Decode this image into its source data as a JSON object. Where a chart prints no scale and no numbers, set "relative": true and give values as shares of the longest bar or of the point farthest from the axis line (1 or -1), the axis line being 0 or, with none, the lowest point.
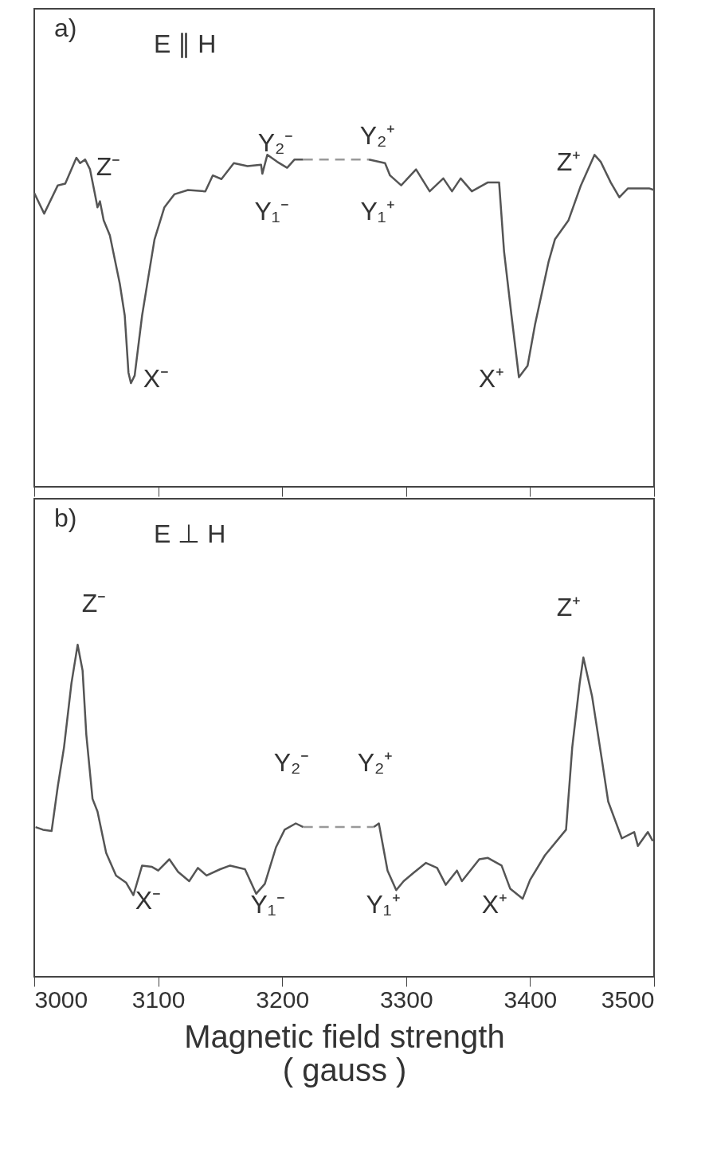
{
  "chart_data": [
    {
      "type": "line",
      "relative": true,
      "xlim": [
        3000,
        3500
      ],
      "xticks": [
        3000,
        3100,
        3200,
        3300,
        3400,
        3500
      ],
      "tick_labels": false,
      "annotations": [
        "a)",
        "E ∥ H",
        "Z⁻",
        "X⁻",
        "Y₂⁻",
        "Y₁⁻",
        "Y₂⁺",
        "Y₁⁺",
        "X⁺",
        "Z⁺"
      ],
      "series": [
        {
          "color": "#555555",
          "line_style": "solid",
          "x": [
            3000,
            3008,
            3019,
            3025,
            3034,
            3037,
            3041,
            3045,
            3049,
            3051,
            3053,
            3056,
            3061,
            3069,
            3073,
            3076,
            3078,
            3081,
            3087,
            3092,
            3097,
            3105,
            3113,
            3124,
            3138,
            3144,
            3151,
            3161,
            3172,
            3183,
            3184,
            3188,
            3196,
            3204,
            3210,
            3217
          ],
          "values": [
            0.885,
            0.823,
            0.908,
            0.913,
            0.991,
            0.975,
            0.986,
            0.956,
            0.881,
            0.842,
            0.86,
            0.803,
            0.757,
            0.612,
            0.516,
            0.344,
            0.312,
            0.335,
            0.516,
            0.631,
            0.745,
            0.842,
            0.881,
            0.894,
            0.89,
            0.938,
            0.927,
            0.975,
            0.966,
            0.97,
            0.943,
            1.0,
            0.979,
            0.961,
            0.986,
            0.986
          ]
        },
        {
          "color": "#999999",
          "type": "line",
          "line_style": "dashed",
          "x": [
            3217,
            3270
          ],
          "values": [
            0.986,
            0.986
          ]
        },
        {
          "color": "#555555",
          "line_style": "solid",
          "x": [
            3270,
            3283,
            3287,
            3296,
            3308,
            3319,
            3330,
            3337,
            3344,
            3353,
            3366,
            3375,
            3379,
            3385,
            3391,
            3398,
            3404,
            3415,
            3420,
            3431,
            3441,
            3452,
            3457,
            3465,
            3472,
            3479,
            3489,
            3496,
            3500
          ],
          "values": [
            0.986,
            0.975,
            0.938,
            0.908,
            0.956,
            0.89,
            0.929,
            0.89,
            0.929,
            0.89,
            0.917,
            0.917,
            0.709,
            0.516,
            0.33,
            0.365,
            0.489,
            0.679,
            0.745,
            0.803,
            0.908,
            1.0,
            0.979,
            0.917,
            0.872,
            0.899,
            0.899,
            0.899,
            0.894
          ]
        }
      ]
    },
    {
      "type": "line",
      "relative": true,
      "xlim": [
        3000,
        3500
      ],
      "xticks": [
        3000,
        3100,
        3200,
        3300,
        3400,
        3500
      ],
      "tick_labels": "x",
      "xlabel": "Magnetic field strength\n( gauss )",
      "annotations": [
        "b)",
        "E ⊥ H",
        "Z⁻",
        "X⁻",
        "Y₁⁻",
        "Y₂⁻",
        "Y₂⁺",
        "Y₁⁺",
        "X⁺",
        "Z⁺"
      ],
      "series": [
        {
          "color": "#555555",
          "line_style": "solid",
          "x": [
            3001,
            3007,
            3014,
            3019,
            3024,
            3030,
            3035,
            3039,
            3042,
            3047,
            3051,
            3058,
            3066,
            3074,
            3080,
            3087,
            3095,
            3100,
            3109,
            3116,
            3125,
            3132,
            3139,
            3150,
            3158,
            3170,
            3179,
            3186,
            3195,
            3202,
            3211,
            3217
          ],
          "values": [
            0.451,
            0.443,
            0.439,
            0.574,
            0.691,
            0.884,
            1.0,
            0.922,
            0.729,
            0.536,
            0.498,
            0.373,
            0.305,
            0.284,
            0.246,
            0.335,
            0.331,
            0.32,
            0.354,
            0.316,
            0.288,
            0.328,
            0.305,
            0.324,
            0.335,
            0.324,
            0.25,
            0.28,
            0.39,
            0.443,
            0.462,
            0.451
          ]
        },
        {
          "color": "#999999",
          "type": "line",
          "line_style": "dashed",
          "x": [
            3217,
            3274
          ],
          "values": [
            0.451,
            0.451
          ]
        },
        {
          "color": "#555555",
          "line_style": "solid",
          "x": [
            3274,
            3278,
            3285,
            3292,
            3298,
            3306,
            3316,
            3325,
            3332,
            3341,
            3345,
            3359,
            3366,
            3377,
            3384,
            3394,
            3400,
            3412,
            3429,
            3434,
            3440,
            3443,
            3450,
            3458,
            3463,
            3474,
            3484,
            3487,
            3495,
            3499
          ],
          "values": [
            0.451,
            0.462,
            0.32,
            0.261,
            0.288,
            0.313,
            0.343,
            0.328,
            0.277,
            0.32,
            0.288,
            0.354,
            0.358,
            0.335,
            0.265,
            0.235,
            0.292,
            0.366,
            0.443,
            0.691,
            0.884,
            0.962,
            0.845,
            0.652,
            0.528,
            0.417,
            0.436,
            0.394,
            0.436,
            0.409
          ]
        }
      ]
    }
  ]
}
